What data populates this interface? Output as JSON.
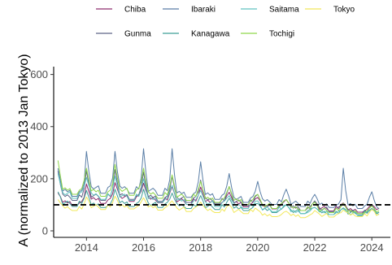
{
  "chart_data": {
    "type": "line",
    "title": "",
    "xlabel": "",
    "ylabel": "A (normalized to 2013 Jan Tokyo)",
    "xlim": [
      2012.85,
      2024.65
    ],
    "ylim": [
      -25,
      630
    ],
    "x_ticks": [
      2014,
      2016,
      2018,
      2020,
      2022,
      2024
    ],
    "x_tick_labels": [
      "2014",
      "2016",
      "2018",
      "2020",
      "2022",
      "2024"
    ],
    "y_ticks": [
      0,
      200,
      400,
      600
    ],
    "y_tick_labels": [
      "0",
      "200",
      "400",
      "600"
    ],
    "grid": false,
    "legend_position": "top",
    "reference_line": {
      "y": 100,
      "style": "dashed"
    },
    "series": [
      {
        "name": "Chiba",
        "color": "#8e2c6e",
        "start": [
          2013,
          1
        ],
        "end": [
          2024,
          4
        ],
        "annual_mean": [
          125,
          135,
          145,
          138,
          130,
          128,
          118,
          108,
          100,
          98,
          92,
          90
        ],
        "peak": [
          20,
          45,
          40,
          45,
          40,
          40,
          30,
          20,
          20,
          15,
          15,
          10
        ]
      },
      {
        "name": "Gunma",
        "color": "#5d6487",
        "start": [
          2013,
          1
        ],
        "end": [
          2024,
          4
        ],
        "annual_mean": [
          150,
          150,
          155,
          145,
          140,
          135,
          125,
          110,
          100,
          95,
          85,
          80
        ],
        "peak": [
          80,
          80,
          80,
          80,
          70,
          60,
          45,
          30,
          20,
          20,
          20,
          20
        ]
      },
      {
        "name": "Ibaraki",
        "color": "#5a7ea6",
        "start": [
          2013,
          1
        ],
        "end": [
          2024,
          4
        ],
        "annual_mean": [
          170,
          185,
          185,
          175,
          165,
          155,
          140,
          130,
          120,
          115,
          110,
          100
        ],
        "peak": [
          70,
          120,
          120,
          140,
          150,
          110,
          80,
          60,
          40,
          25,
          130,
          50
        ]
      },
      {
        "name": "Kanagawa",
        "color": "#3f9f97",
        "start": [
          2013,
          1
        ],
        "end": [
          2024,
          4
        ],
        "annual_mean": [
          120,
          115,
          120,
          115,
          110,
          105,
          100,
          90,
          85,
          80,
          78,
          76
        ],
        "peak": [
          30,
          40,
          40,
          45,
          35,
          30,
          25,
          15,
          15,
          10,
          10,
          10
        ]
      },
      {
        "name": "Saitama",
        "color": "#5fc2c0",
        "start": [
          2013,
          1
        ],
        "end": [
          2024,
          4
        ],
        "annual_mean": [
          160,
          155,
          150,
          140,
          130,
          120,
          110,
          95,
          85,
          80,
          75,
          72
        ],
        "peak": [
          60,
          50,
          60,
          60,
          45,
          35,
          25,
          20,
          15,
          10,
          10,
          10
        ]
      },
      {
        "name": "Tochigi",
        "color": "#8fd64b",
        "start": [
          2013,
          1
        ],
        "end": [
          2024,
          4
        ],
        "annual_mean": [
          180,
          170,
          175,
          160,
          150,
          140,
          130,
          110,
          100,
          90,
          85,
          80
        ],
        "peak": [
          90,
          70,
          80,
          80,
          65,
          50,
          40,
          30,
          20,
          20,
          20,
          15
        ]
      },
      {
        "name": "Tokyo",
        "color": "#f2e85a",
        "start": [
          2013,
          1
        ],
        "end": [
          2024,
          4
        ],
        "annual_mean": [
          100,
          105,
          108,
          102,
          95,
          90,
          85,
          70,
          65,
          68,
          70,
          72
        ],
        "peak": [
          20,
          25,
          25,
          25,
          20,
          20,
          15,
          10,
          10,
          10,
          10,
          10
        ]
      }
    ]
  }
}
